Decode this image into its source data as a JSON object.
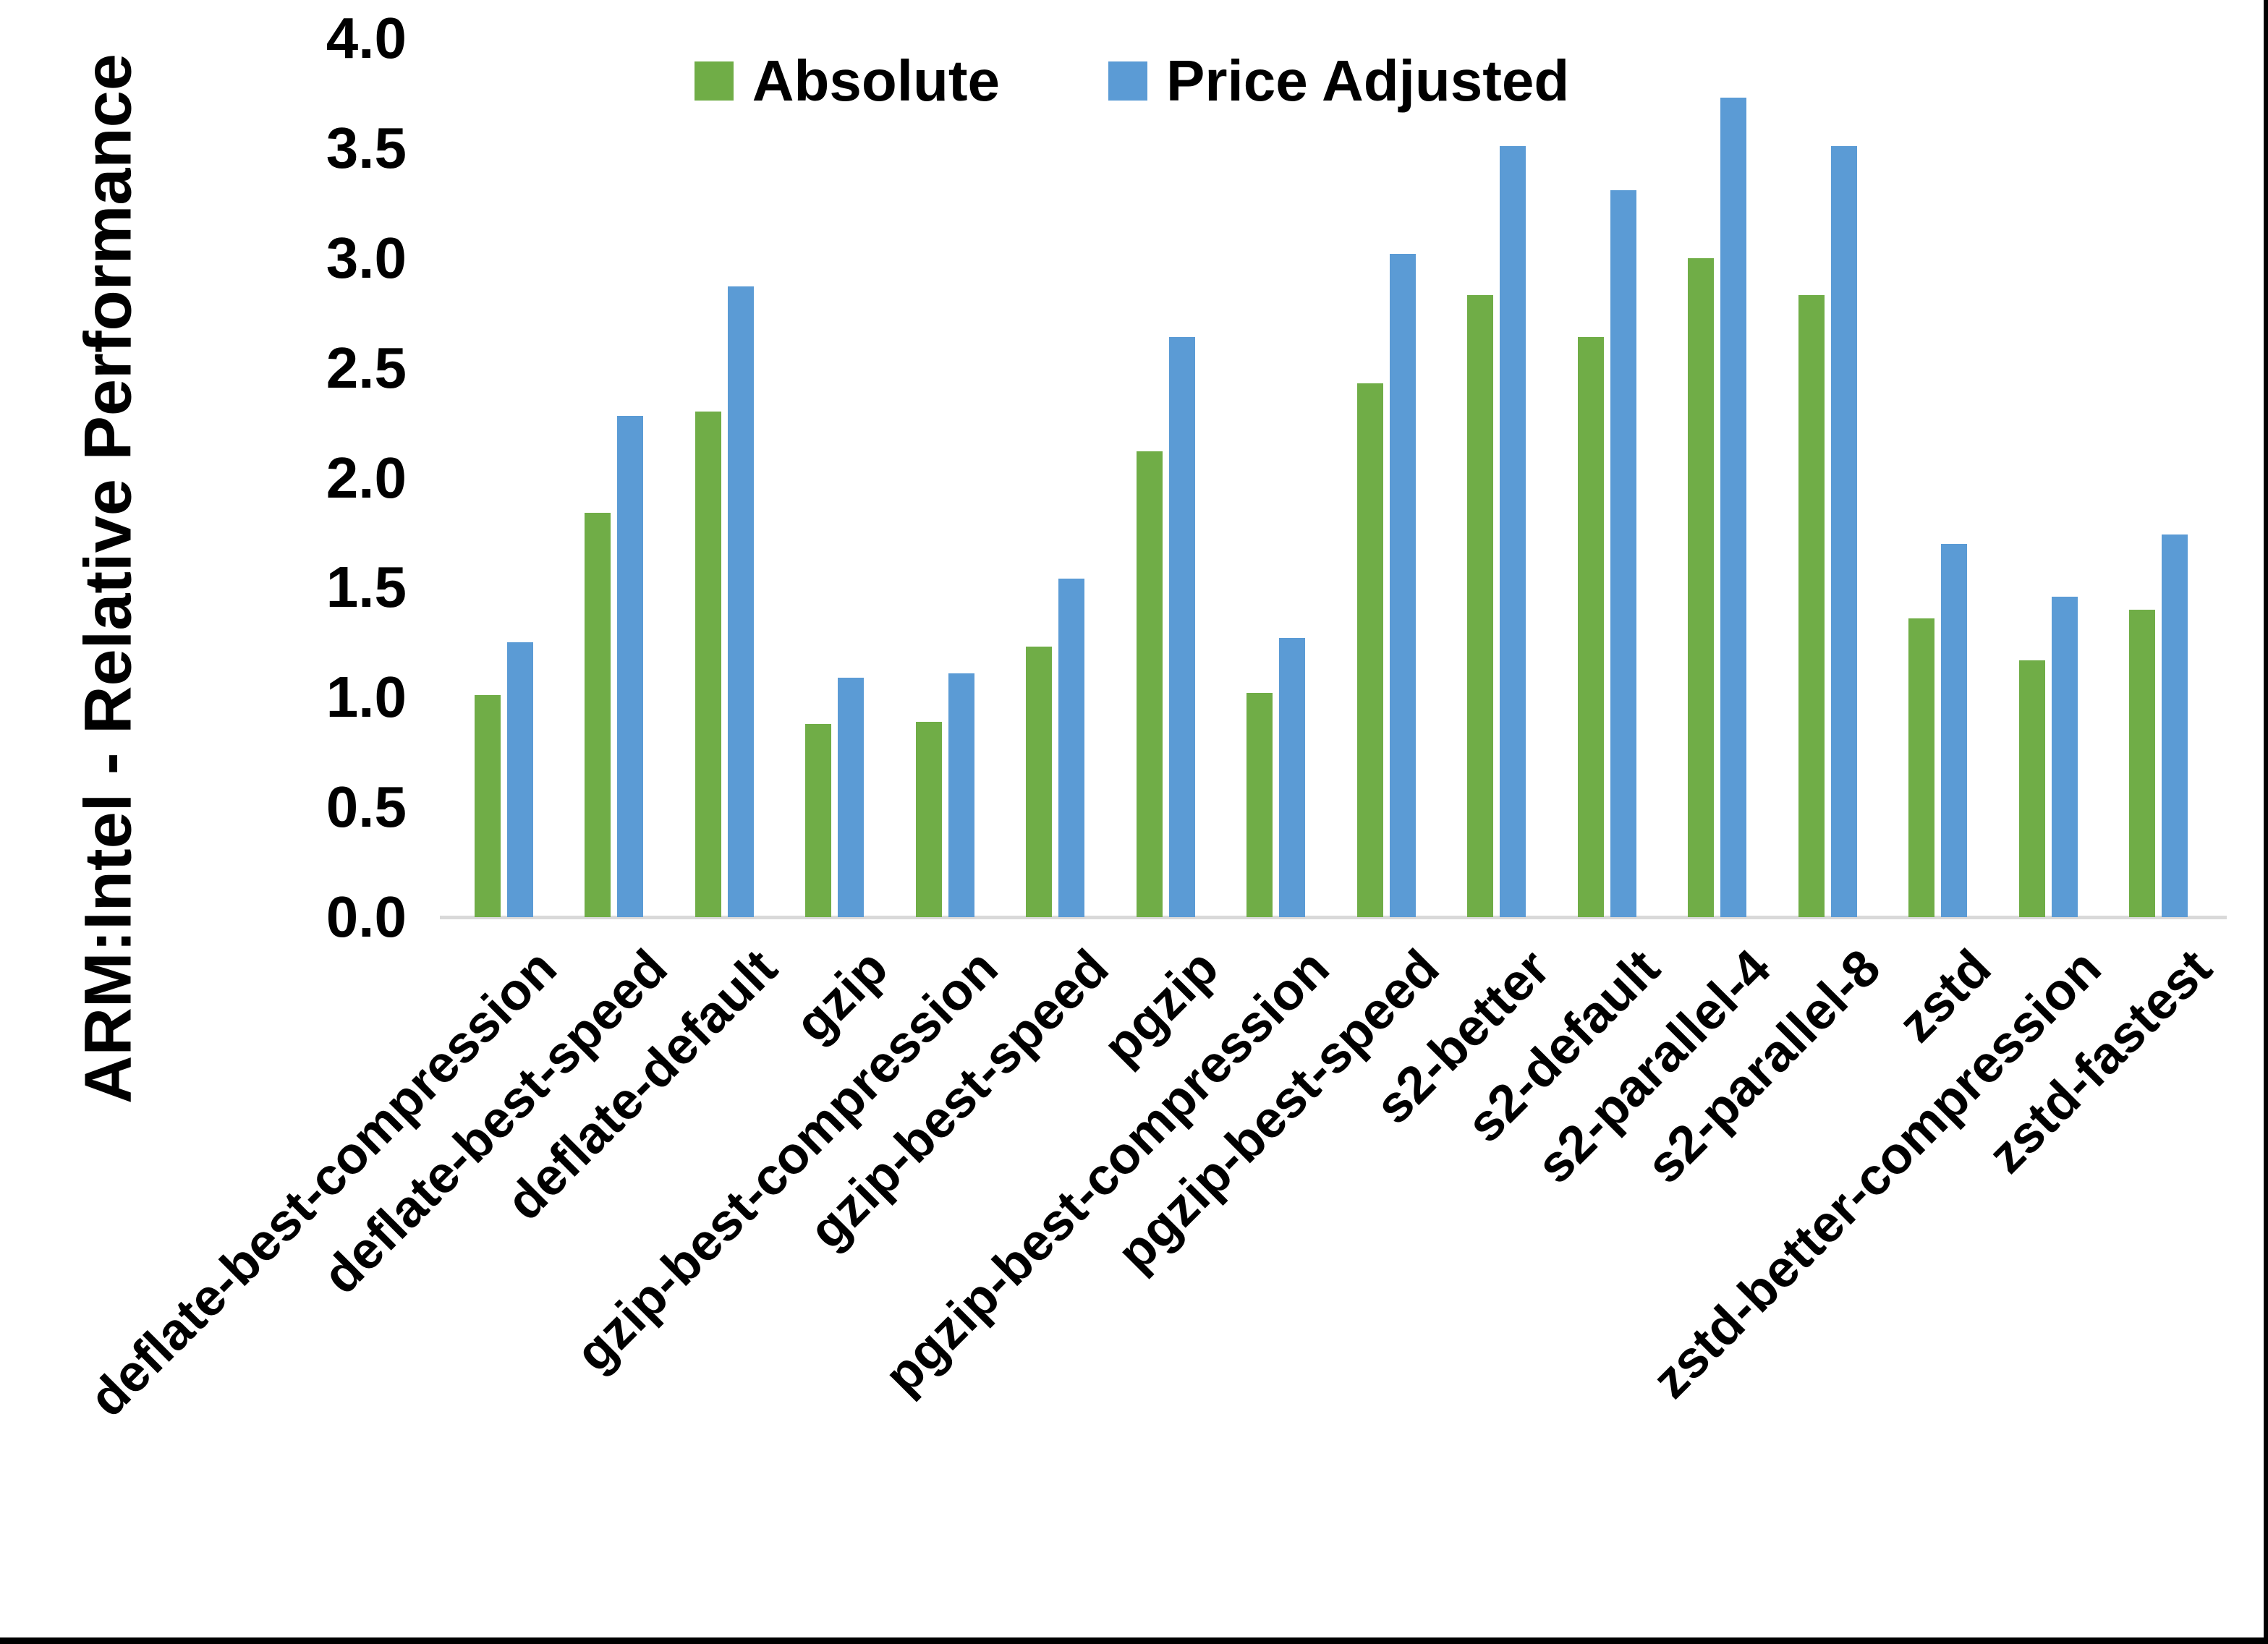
{
  "chart_data": {
    "type": "bar",
    "title": "",
    "ylabel": "ARM:Intel - Relative Performance",
    "xlabel": "",
    "ylim": [
      0.0,
      4.0
    ],
    "ytick_step": 0.5,
    "grid": false,
    "legend_position": "top-center",
    "categories": [
      "deflate-best-compression",
      "deflate-best-speed",
      "deflate-default",
      "gzip",
      "gzip-best-compression",
      "gzip-best-speed",
      "pgzip",
      "pgzip-best-compression",
      "pgzip-best-speed",
      "s2-better",
      "s2-default",
      "s2-parallel-4",
      "s2-parallel-8",
      "zstd",
      "zstd-better-compression",
      "zstd-fastest"
    ],
    "series": [
      {
        "name": "Absolute",
        "color": "#70AD47",
        "values": [
          1.01,
          1.84,
          2.3,
          0.88,
          0.89,
          1.23,
          2.12,
          1.02,
          2.43,
          2.83,
          2.64,
          3.0,
          2.83,
          1.36,
          1.17,
          1.4
        ]
      },
      {
        "name": "Price Adjusted",
        "color": "#5B9BD5",
        "values": [
          1.25,
          2.28,
          2.87,
          1.09,
          1.11,
          1.54,
          2.64,
          1.27,
          3.02,
          3.51,
          3.31,
          3.73,
          3.51,
          1.7,
          1.46,
          1.74
        ]
      }
    ]
  },
  "y_axis": {
    "tick_labels": [
      "4.0",
      "3.5",
      "3.0",
      "2.5",
      "2.0",
      "1.5",
      "1.0",
      "0.5",
      "0.0"
    ],
    "text_color": "#000000",
    "axis_line_color": "#D9D9D9"
  }
}
